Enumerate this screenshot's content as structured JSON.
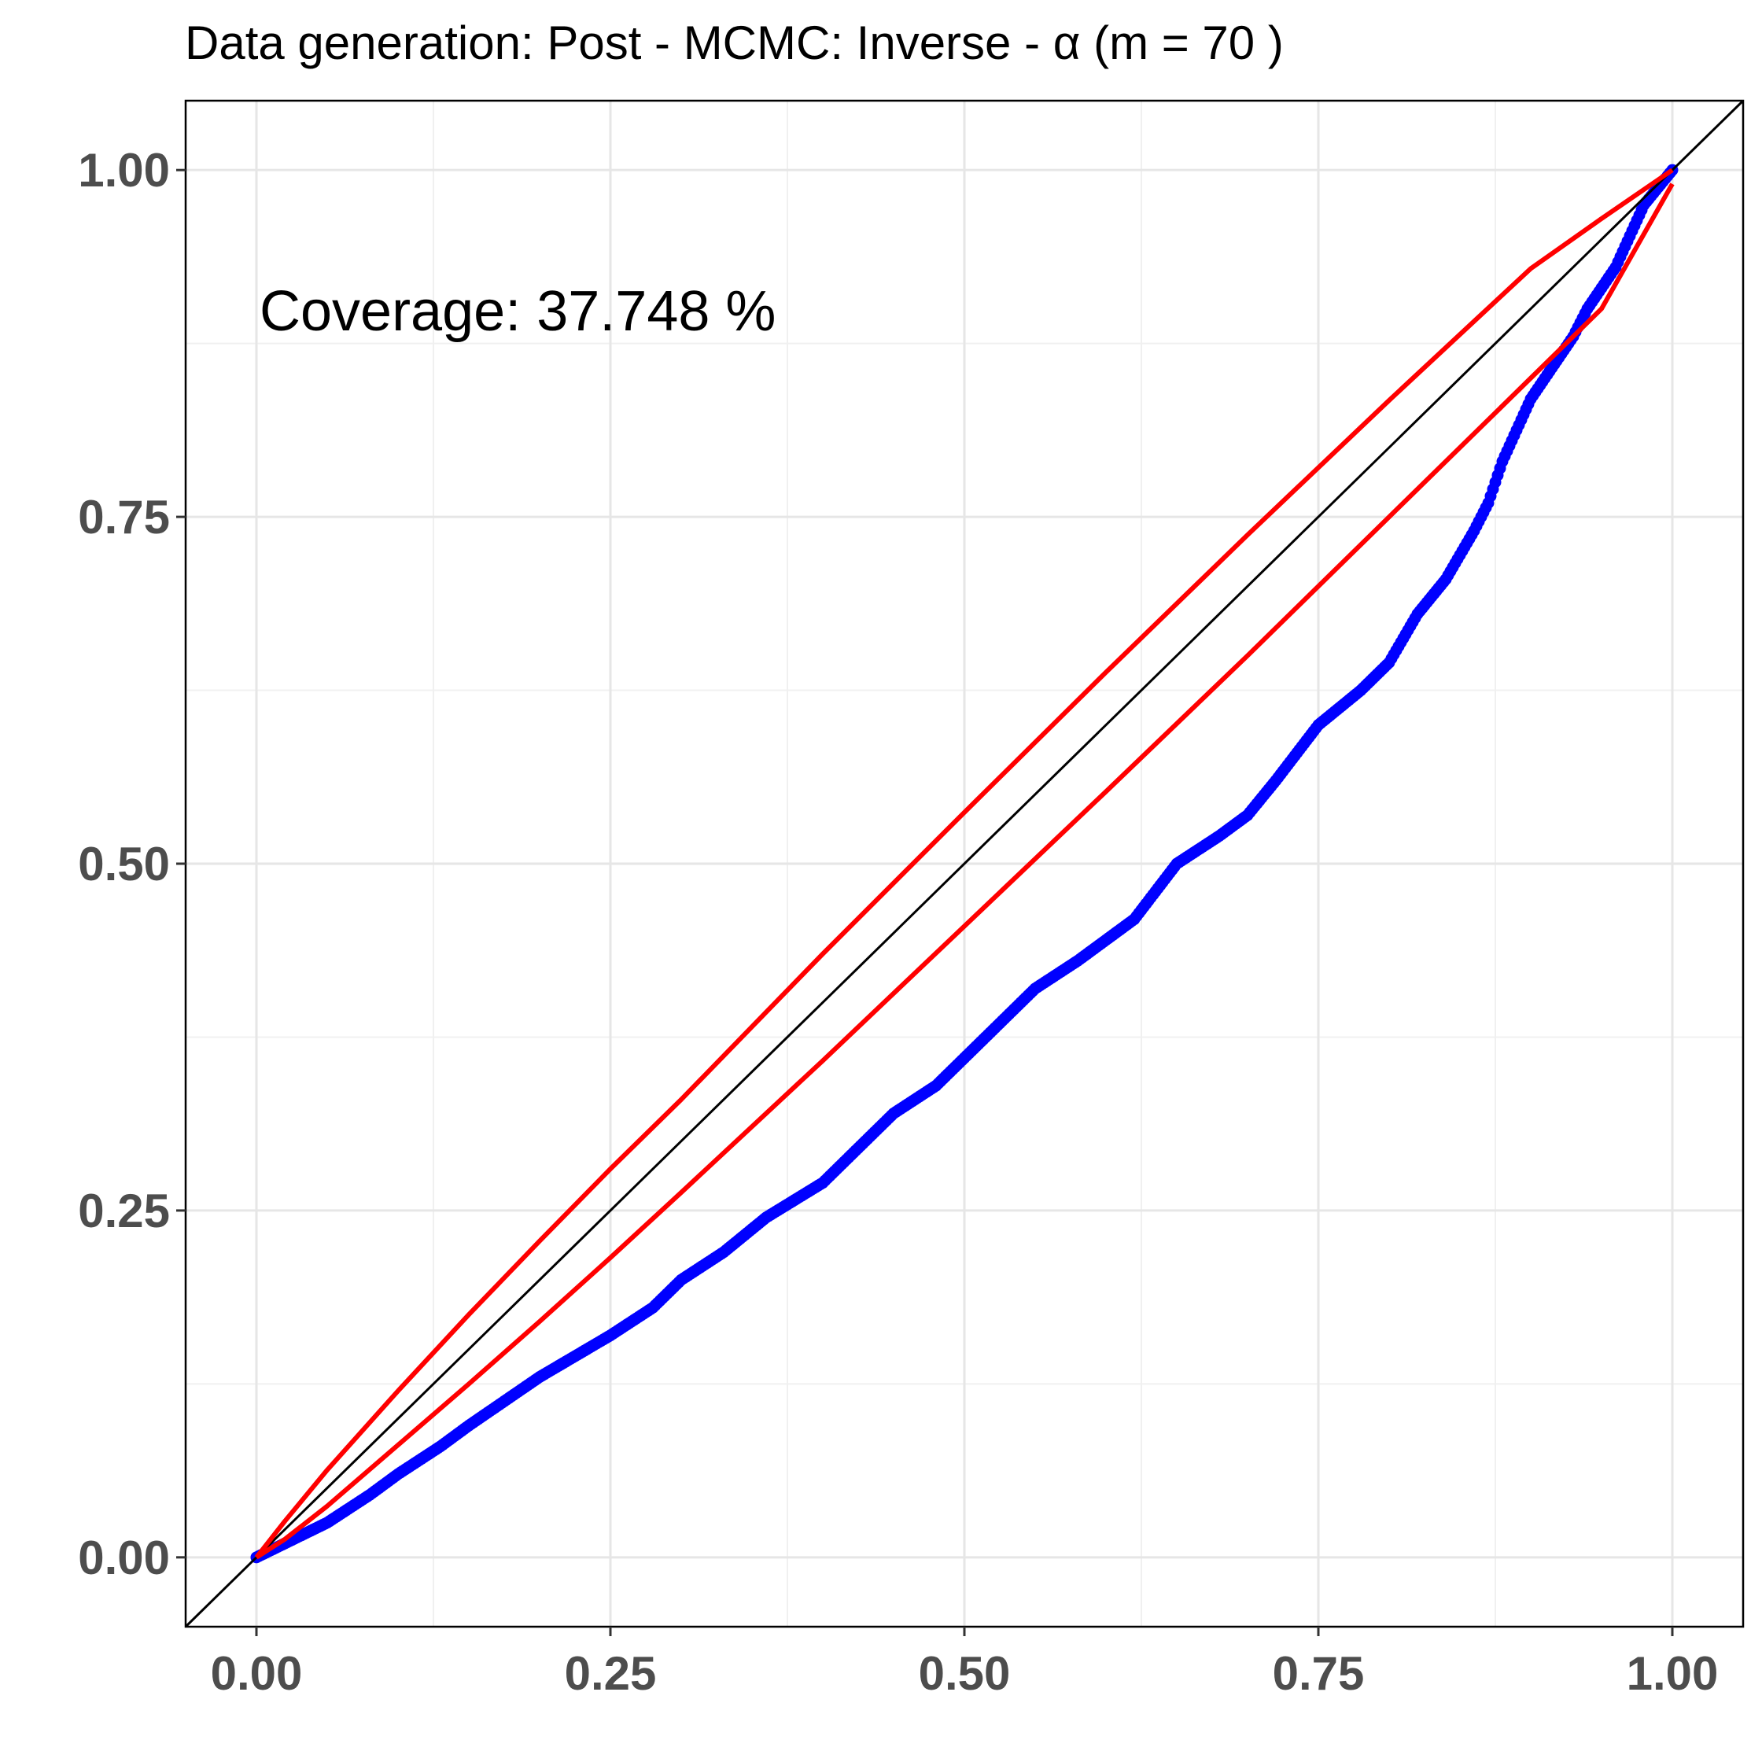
{
  "chart_data": {
    "type": "scatter",
    "title": "Data generation:  Post - MCMC:  Inverse  -  α  (m =  70 )",
    "annotation": "Coverage:  37.748 %",
    "xlabel": "",
    "ylabel": "",
    "xlim": [
      -0.05,
      1.05
    ],
    "ylim": [
      -0.05,
      1.05
    ],
    "x_ticks": [
      0,
      0.25,
      0.5,
      0.75,
      1
    ],
    "x_tick_labels": [
      "0.00",
      "0.25",
      "0.50",
      "0.75",
      "1.00"
    ],
    "y_ticks": [
      0,
      0.25,
      0.5,
      0.75,
      1
    ],
    "y_tick_labels": [
      "0.00",
      "0.25",
      "0.50",
      "0.75",
      "1.00"
    ],
    "grid": true,
    "reference_line": {
      "name": "identity",
      "color": "#000000"
    },
    "series": [
      {
        "color": "#0000ff",
        "kind": "points",
        "x": [
          0,
          0.02,
          0.05,
          0.08,
          0.1,
          0.13,
          0.15,
          0.2,
          0.25,
          0.28,
          0.3,
          0.33,
          0.36,
          0.4,
          0.43,
          0.45,
          0.48,
          0.5,
          0.53,
          0.55,
          0.58,
          0.6,
          0.62,
          0.65,
          0.68,
          0.7,
          0.72,
          0.75,
          0.78,
          0.8,
          0.82,
          0.84,
          0.86,
          0.87,
          0.88,
          0.9,
          0.92,
          0.93,
          0.94,
          0.96,
          0.98,
          1.0
        ],
        "y": [
          0,
          0.01,
          0.025,
          0.045,
          0.06,
          0.08,
          0.095,
          0.13,
          0.16,
          0.18,
          0.2,
          0.22,
          0.245,
          0.27,
          0.3,
          0.32,
          0.34,
          0.36,
          0.39,
          0.41,
          0.43,
          0.445,
          0.46,
          0.5,
          0.52,
          0.535,
          0.56,
          0.6,
          0.625,
          0.645,
          0.68,
          0.705,
          0.74,
          0.76,
          0.79,
          0.835,
          0.865,
          0.88,
          0.9,
          0.93,
          0.975,
          1.0
        ]
      },
      {
        "color": "#ff0000",
        "kind": "line",
        "x": [
          0,
          0.02,
          0.05,
          0.1,
          0.15,
          0.2,
          0.25,
          0.3,
          0.4,
          0.5,
          0.6,
          0.7,
          0.8,
          0.9,
          0.95,
          1.0
        ],
        "y": [
          0,
          0.026,
          0.063,
          0.12,
          0.175,
          0.228,
          0.28,
          0.33,
          0.435,
          0.537,
          0.638,
          0.737,
          0.834,
          0.929,
          0.965,
          1.0
        ]
      },
      {
        "color": "#ff0000",
        "kind": "line",
        "x": [
          0,
          0.02,
          0.05,
          0.1,
          0.15,
          0.2,
          0.25,
          0.3,
          0.4,
          0.5,
          0.6,
          0.7,
          0.8,
          0.9,
          0.95,
          1.0
        ],
        "y": [
          0,
          0.013,
          0.037,
          0.081,
          0.125,
          0.17,
          0.216,
          0.263,
          0.358,
          0.455,
          0.552,
          0.65,
          0.75,
          0.85,
          0.9,
          0.99
        ]
      }
    ]
  }
}
